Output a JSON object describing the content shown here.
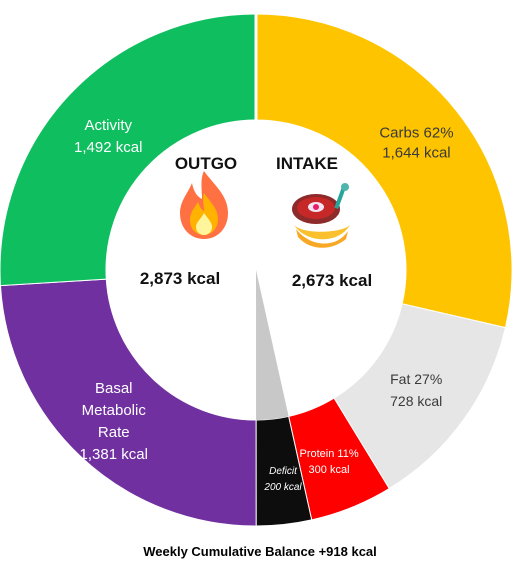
{
  "chart_data": {
    "type": "pie",
    "caption": "Weekly Cumulative Balance +918 kcal",
    "outgo": {
      "heading": "OUTGO",
      "total": "2,873 kcal",
      "icon": "fire-icon"
    },
    "intake": {
      "heading": "INTAKE",
      "total": "2,673 kcal",
      "icon": "food-icon"
    },
    "slices": [
      {
        "id": "carbs",
        "side": "intake",
        "value": 1644,
        "label_lines": [
          "Carbs 62%",
          "1,644 kcal"
        ],
        "color": "#FFC400",
        "text_color": "#3a3a3a"
      },
      {
        "id": "fat",
        "side": "intake",
        "value": 728,
        "label_lines": [
          "Fat 27%",
          "728 kcal"
        ],
        "color": "#E6E6E6",
        "text_color": "#3a3a3a"
      },
      {
        "id": "protein",
        "side": "intake",
        "value": 300,
        "label_lines": [
          "Protein 11%",
          "300 kcal"
        ],
        "color": "#FF0000",
        "text_color": "#ffffff"
      },
      {
        "id": "deficit",
        "side": "outgo",
        "value": 200,
        "label_lines": [
          "Deficit",
          "200 kcal"
        ],
        "color": "#0D0D0D",
        "text_color": "#ffffff"
      },
      {
        "id": "basal",
        "side": "outgo",
        "value": 1381,
        "label_lines": [
          "Basal",
          "Metabolic",
          "Rate",
          "1,381 kcal"
        ],
        "color": "#7030A0",
        "text_color": "#ffffff"
      },
      {
        "id": "activity",
        "side": "outgo",
        "value": 1492,
        "label_lines": [
          "Activity",
          "1,492 kcal"
        ],
        "color": "#0FBF5F",
        "text_color": "#ffffff"
      }
    ]
  }
}
